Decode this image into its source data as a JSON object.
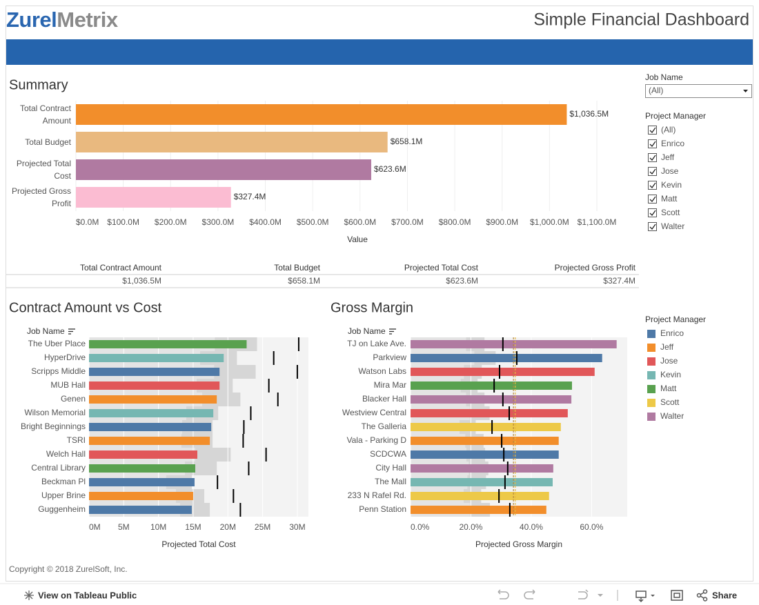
{
  "header": {
    "logo": [
      "Zurel",
      "Metrix"
    ],
    "title": "Simple Financial Dashboard"
  },
  "chart_data": [
    {
      "type": "hbar",
      "title": "Summary",
      "categories": [
        "Total Contract Amount",
        "Total Budget",
        "Projected Total Cost",
        "Projected Gross Profit"
      ],
      "values": [
        1036.5,
        658.1,
        623.6,
        327.4
      ],
      "value_labels": [
        "$1,036.5M",
        "$658.1M",
        "$623.6M",
        "$327.4M"
      ],
      "colors": [
        "#f28e2b",
        "#e9b97f",
        "#b07aa1",
        "#fbbcd2"
      ],
      "xlim": [
        0,
        1100
      ],
      "xticks": [
        {
          "value": 0,
          "label": "$0.0M"
        },
        {
          "value": 100,
          "label": "$100.0M"
        },
        {
          "value": 200,
          "label": "$200.0M"
        },
        {
          "value": 300,
          "label": "$300.0M"
        },
        {
          "value": 400,
          "label": "$400.0M"
        },
        {
          "value": 500,
          "label": "$500.0M"
        },
        {
          "value": 600,
          "label": "$600.0M"
        },
        {
          "value": 700,
          "label": "$700.0M"
        },
        {
          "value": 800,
          "label": "$800.0M"
        },
        {
          "value": 900,
          "label": "$900.0M"
        },
        {
          "value": 1000,
          "label": "$1,000.0M"
        },
        {
          "value": 1100,
          "label": "$1,100.0M"
        }
      ],
      "x_label": "Value",
      "grid": true
    },
    {
      "type": "bullet",
      "title": "Contract Amount vs Cost",
      "y_header": "Job Name",
      "categories": [
        "The Uber Place",
        "HyperDrive",
        "Scripps Middle",
        "MUB Hall",
        "Genen",
        "Wilson Memorial",
        "Bright Beginnings",
        "TSRI",
        "Welch Hall",
        "Central Library",
        "Beckman Pl",
        "Upper Brine",
        "Guggenheim"
      ],
      "values": [
        22.7,
        19.4,
        18.8,
        18.8,
        18.4,
        17.9,
        17.6,
        17.4,
        15.6,
        15.3,
        15.2,
        15.0,
        14.8
      ],
      "colors": [
        "#59a14f",
        "#76b7b2",
        "#4e79a7",
        "#e15759",
        "#f28e2b",
        "#76b7b2",
        "#4e79a7",
        "#f28e2b",
        "#e15759",
        "#59a14f",
        "#4e79a7",
        "#f28e2b",
        "#4e79a7"
      ],
      "reference_values": [
        30.2,
        26.6,
        30.0,
        25.9,
        27.2,
        23.3,
        22.3,
        22.2,
        25.5,
        23.0,
        18.5,
        20.8,
        21.8
      ],
      "band_low": [
        18.1,
        16.0,
        18.0,
        15.5,
        16.3,
        14.0,
        13.4,
        13.3,
        15.3,
        13.8,
        11.1,
        12.5,
        13.1
      ],
      "band_high": [
        24.2,
        21.3,
        24.0,
        20.7,
        21.8,
        18.6,
        17.8,
        17.8,
        20.4,
        18.4,
        14.8,
        16.6,
        17.4
      ],
      "xlim": [
        0,
        31.6
      ],
      "xticks": [
        {
          "value": 0,
          "label": "0M"
        },
        {
          "value": 5,
          "label": "5M"
        },
        {
          "value": 10,
          "label": "10M"
        },
        {
          "value": 15,
          "label": "15M"
        },
        {
          "value": 20,
          "label": "20M"
        },
        {
          "value": 25,
          "label": "25M"
        },
        {
          "value": 30,
          "label": "30M"
        }
      ],
      "x_label": "Projected Total Cost",
      "grid": true
    },
    {
      "type": "bullet",
      "title": "Gross Margin",
      "y_header": "Job Name",
      "categories": [
        "TJ on Lake Ave.",
        "Parkview",
        "Watson Labs",
        "Mira Mar",
        "Blacker Hall",
        "Westview Central",
        "The Galleria",
        "Vala - Parking D",
        "SCDCWA",
        "City Hall",
        "The Mall",
        "233 N Rafel Rd.",
        "Penn Station"
      ],
      "values": [
        68.3,
        63.5,
        61.0,
        53.5,
        53.3,
        52.1,
        49.8,
        49.1,
        49.1,
        47.3,
        47.1,
        45.9,
        45.0
      ],
      "colors": [
        "#b07aa1",
        "#4e79a7",
        "#e15759",
        "#59a14f",
        "#b07aa1",
        "#e15759",
        "#edc948",
        "#f28e2b",
        "#4e79a7",
        "#b07aa1",
        "#76b7b2",
        "#edc948",
        "#f28e2b"
      ],
      "reference_values": [
        30.6,
        35.2,
        29.5,
        27.7,
        30.6,
        32.7,
        27.0,
        30.2,
        30.9,
        32.2,
        31.3,
        29.3,
        32.9
      ],
      "band_low": [
        18.4,
        21.1,
        17.7,
        16.6,
        18.4,
        19.6,
        16.2,
        18.1,
        18.5,
        19.3,
        18.8,
        17.6,
        19.7
      ],
      "band_high": [
        24.5,
        28.2,
        23.6,
        22.2,
        24.5,
        26.2,
        21.6,
        24.2,
        24.7,
        25.8,
        25.0,
        23.4,
        26.3
      ],
      "reference_lines": [
        {
          "value": 34.1,
          "color": "#b5863a"
        },
        {
          "value": 34.7,
          "color": "#e7b940"
        }
      ],
      "xlim": [
        0,
        71.8
      ],
      "xticks": [
        {
          "value": 0,
          "label": "0.0%"
        },
        {
          "value": 20,
          "label": "20.0%"
        },
        {
          "value": 40,
          "label": "40.0%"
        },
        {
          "value": 60,
          "label": "60.0%"
        }
      ],
      "x_label": "Projected Gross Margin",
      "grid": true
    }
  ],
  "summary_table": {
    "headers": [
      "Total Contract Amount",
      "Total Budget",
      "Projected Total Cost",
      "Projected Gross Profit"
    ],
    "rows": [
      [
        "$1,036.5M",
        "$658.1M",
        "$623.6M",
        "$327.4M"
      ]
    ]
  },
  "filters": {
    "job_name": {
      "label": "Job Name",
      "selected": "(All)"
    },
    "project_manager": {
      "label": "Project Manager",
      "options": [
        "(All)",
        "Enrico",
        "Jeff",
        "Jose",
        "Kevin",
        "Matt",
        "Scott",
        "Walter"
      ]
    }
  },
  "legend": {
    "title": "Project Manager",
    "items": [
      {
        "name": "Enrico",
        "color": "#4e79a7"
      },
      {
        "name": "Jeff",
        "color": "#f28e2b"
      },
      {
        "name": "Jose",
        "color": "#e15759"
      },
      {
        "name": "Kevin",
        "color": "#76b7b2"
      },
      {
        "name": "Matt",
        "color": "#59a14f"
      },
      {
        "name": "Scott",
        "color": "#edc948"
      },
      {
        "name": "Walter",
        "color": "#b07aa1"
      }
    ]
  },
  "footer": {
    "copyright": "Copyright © 2018 ZurelSoft, Inc."
  },
  "toolbar": {
    "view": "View on Tableau Public",
    "share": "Share"
  }
}
